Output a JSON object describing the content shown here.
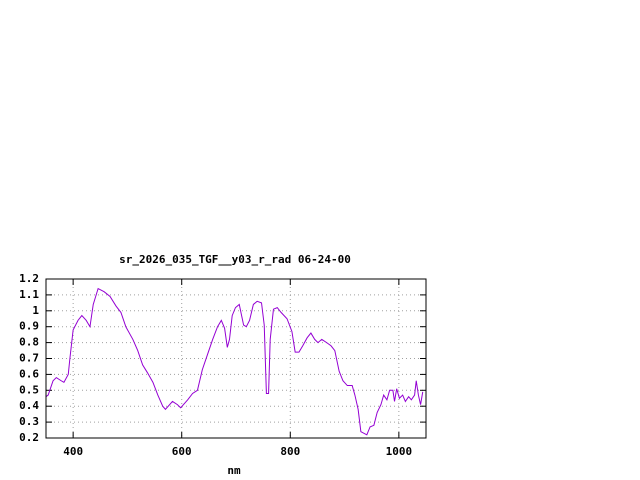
{
  "chart_data": {
    "type": "line",
    "title": "sr_2026_035_TGF__y03_r_rad 06-24-00",
    "x_label": "nm",
    "grid": true,
    "series": [
      {
        "color": "#9400d3",
        "x": [
          350,
          354,
          363,
          369,
          378,
          383,
          391,
          394,
          400,
          409,
          416,
          424,
          431,
          437,
          446,
          457,
          468,
          479,
          488,
          497,
          510,
          519,
          528,
          537,
          547,
          556,
          565,
          570,
          583,
          592,
          598,
          611,
          620,
          629,
          638,
          647,
          657,
          666,
          673,
          679,
          684,
          688,
          693,
          699,
          706,
          714,
          719,
          725,
          732,
          739,
          747,
          752,
          756,
          760,
          763,
          769,
          776,
          783,
          794,
          803,
          809,
          816,
          823,
          831,
          838,
          845,
          851,
          858,
          867,
          875,
          882,
          890,
          897,
          905,
          914,
          919,
          925,
          930,
          941,
          947,
          954,
          960,
          967,
          972,
          978,
          983,
          989,
          992,
          996,
          1001,
          1007,
          1012,
          1018,
          1023,
          1029,
          1032,
          1036,
          1040,
          1044
        ],
        "values": [
          0.46,
          0.47,
          0.56,
          0.58,
          0.56,
          0.55,
          0.6,
          0.7,
          0.88,
          0.94,
          0.97,
          0.94,
          0.9,
          1.04,
          1.14,
          1.12,
          1.09,
          1.03,
          0.99,
          0.9,
          0.82,
          0.75,
          0.66,
          0.61,
          0.55,
          0.47,
          0.4,
          0.38,
          0.43,
          0.41,
          0.39,
          0.44,
          0.48,
          0.5,
          0.63,
          0.72,
          0.82,
          0.9,
          0.94,
          0.89,
          0.77,
          0.82,
          0.97,
          1.02,
          1.04,
          0.91,
          0.9,
          0.94,
          1.04,
          1.06,
          1.05,
          0.91,
          0.48,
          0.48,
          0.82,
          1.01,
          1.02,
          0.99,
          0.95,
          0.87,
          0.74,
          0.74,
          0.78,
          0.83,
          0.86,
          0.82,
          0.8,
          0.82,
          0.8,
          0.78,
          0.75,
          0.62,
          0.56,
          0.53,
          0.53,
          0.47,
          0.38,
          0.24,
          0.22,
          0.27,
          0.28,
          0.36,
          0.41,
          0.47,
          0.44,
          0.5,
          0.5,
          0.43,
          0.51,
          0.45,
          0.47,
          0.43,
          0.46,
          0.44,
          0.47,
          0.56,
          0.47,
          0.41,
          0.49
        ]
      }
    ],
    "xlim": [
      350,
      1050
    ],
    "xticks": [
      400,
      600,
      800,
      1000
    ],
    "ylim": [
      0.2,
      1.2
    ],
    "yticks": [
      0.2,
      0.3,
      0.4,
      0.5,
      0.6,
      0.7,
      0.8,
      0.9,
      1,
      1.1,
      1.2
    ]
  }
}
